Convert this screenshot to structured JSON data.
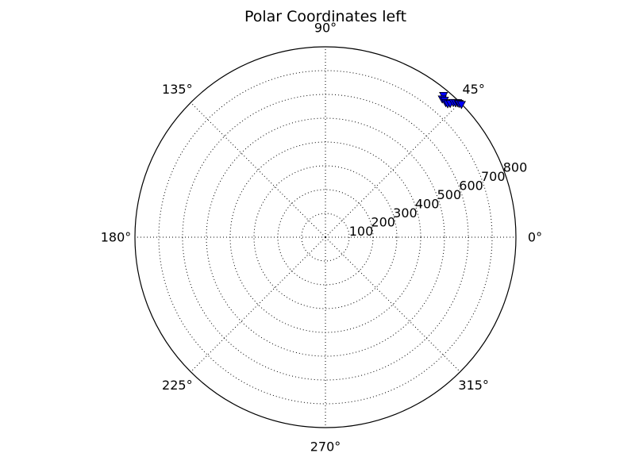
{
  "chart_data": {
    "type": "scatter",
    "projection": "polar",
    "title": "Polar Coordinates left",
    "angular_ticks": [
      "0°",
      "45°",
      "90°",
      "135°",
      "180°",
      "225°",
      "270°",
      "315°"
    ],
    "angular_tick_values": [
      0,
      45,
      90,
      135,
      180,
      225,
      270,
      315
    ],
    "radial_ticks": [
      "100",
      "200",
      "300",
      "400",
      "500",
      "600",
      "700",
      "800"
    ],
    "radial_tick_values": [
      100,
      200,
      300,
      400,
      500,
      600,
      700,
      800
    ],
    "rlim": [
      0,
      800
    ],
    "grid": true,
    "marker": "triangle-down",
    "marker_color": "#0000ff",
    "series": [
      {
        "points": [
          {
            "theta": 50.2,
            "r": 775
          },
          {
            "theta": 49.8,
            "r": 760
          },
          {
            "theta": 49.0,
            "r": 762
          },
          {
            "theta": 48.2,
            "r": 758
          },
          {
            "theta": 47.5,
            "r": 760
          },
          {
            "theta": 47.0,
            "r": 768
          },
          {
            "theta": 46.5,
            "r": 780
          },
          {
            "theta": 46.0,
            "r": 786
          },
          {
            "theta": 45.5,
            "r": 792
          },
          {
            "theta": 45.0,
            "r": 794
          },
          {
            "theta": 44.3,
            "r": 798
          }
        ]
      }
    ]
  }
}
